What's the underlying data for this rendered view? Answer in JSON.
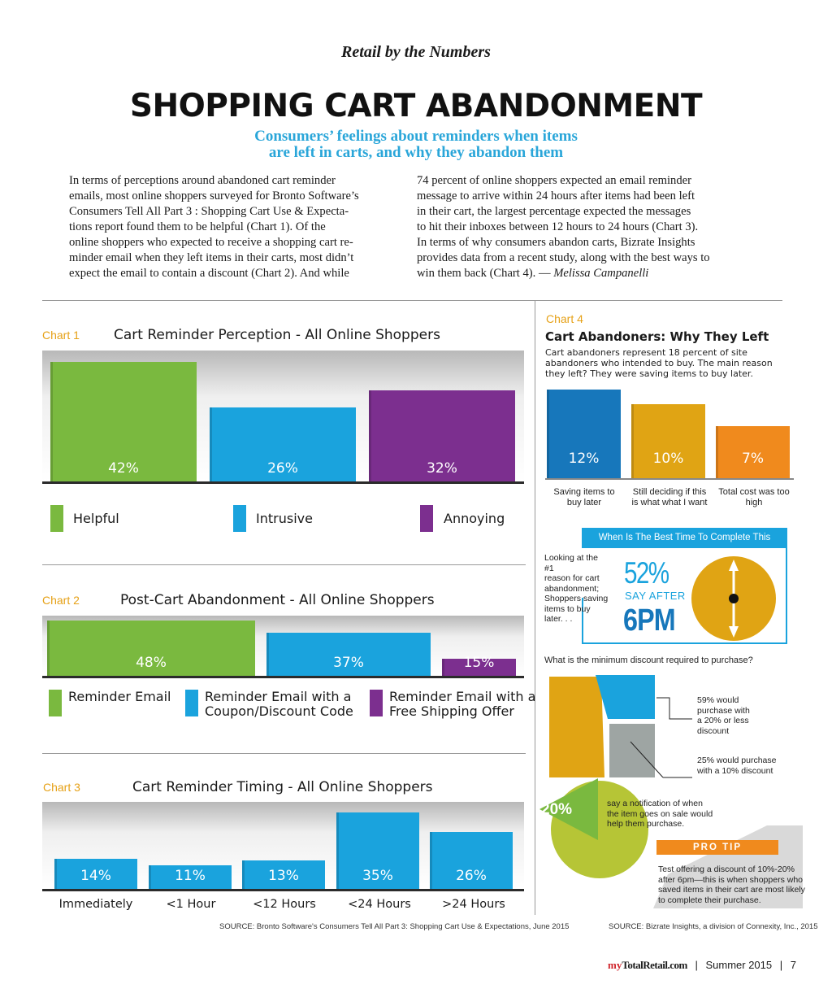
{
  "header": {
    "kicker": "Retail by the Numbers",
    "headline": "SHOPPING CART ABANDONMENT",
    "dek_line1": "Consumers’ feelings about reminders when items",
    "dek_line2": "are left in carts, and why they abandon them"
  },
  "article": {
    "col1": [
      "In terms of perceptions around abandoned cart reminder",
      "emails, most online shoppers surveyed for Bronto Software’s",
      "Consumers Tell All Part 3 : Shopping Cart Use & Expecta-",
      "tions report found them to be helpful (Chart 1). Of the",
      "online shoppers who expected to receive a shopping cart re-",
      "minder email when they left items in their carts, most didn’t",
      "expect the email to contain a discount (Chart 2). And while"
    ],
    "col2": [
      "74 percent of online shoppers expected an email reminder",
      "message to arrive within 24 hours after items had been left",
      "in their cart, the largest percentage expected the messages",
      "to hit their inboxes between 12 hours to 24 hours (Chart 3).",
      "In terms of why consumers abandon carts, Bizrate Insights",
      "provides data from a recent study, along with the best ways to",
      "win them back (Chart 4). — "
    ],
    "byline": "Melissa Campanelli"
  },
  "chart_data": [
    {
      "type": "bar",
      "tag": "Chart 1",
      "title": "Cart Reminder Perception - All Online Shoppers",
      "categories": [
        "Helpful",
        "Intrusive",
        "Annoying"
      ],
      "values": [
        42,
        26,
        32
      ],
      "labels": [
        "42%",
        "26%",
        "32%"
      ],
      "colors": [
        "#7ab93f",
        "#1aa3dd",
        "#7c2f8f"
      ]
    },
    {
      "type": "bar",
      "tag": "Chart 2",
      "title": "Post-Cart Abandonment - All Online Shoppers",
      "categories": [
        "Reminder Email",
        "Reminder Email with a Coupon/Discount Code",
        "Reminder Email with a Free Shipping Offer"
      ],
      "legend": [
        [
          "Reminder Email"
        ],
        [
          "Reminder Email with a",
          "Coupon/Discount Code"
        ],
        [
          "Reminder Email with a",
          "Free Shipping Offer"
        ]
      ],
      "values": [
        48,
        37,
        15
      ],
      "labels": [
        "48%",
        "37%",
        "15%"
      ],
      "colors": [
        "#7ab93f",
        "#1aa3dd",
        "#7c2f8f"
      ]
    },
    {
      "type": "bar",
      "tag": "Chart 3",
      "title": "Cart Reminder Timing - All Online Shoppers",
      "categories": [
        "Immediately",
        "<1 Hour",
        "<12 Hours",
        "<24 Hours",
        ">24 Hours"
      ],
      "values": [
        14,
        11,
        13,
        35,
        26
      ],
      "labels": [
        "14%",
        "11%",
        "13%",
        "35%",
        "26%"
      ],
      "color": "#1aa3dd"
    },
    {
      "type": "bar",
      "tag": "Chart 4",
      "title": "Cart Abandoners: Why They Left",
      "subtitle": [
        "Cart abandoners represent 18 percent of site",
        "abandoners who intended to buy. The main reason",
        "they left? They were saving items to buy later."
      ],
      "categories": [
        "Saving items to buy later",
        "Still deciding if this is what what I want",
        "Total cost was too high"
      ],
      "category_lines": [
        [
          "Saving items to",
          "buy later"
        ],
        [
          "Still deciding if this",
          "is what what I want"
        ],
        [
          "Total cost was too",
          "high"
        ]
      ],
      "values": [
        12,
        10,
        7
      ],
      "labels": [
        "12%",
        "10%",
        "7%"
      ],
      "colors": [
        "#1777bb",
        "#e0a414",
        "#f08a1d"
      ]
    }
  ],
  "sources": {
    "left": "SOURCE: Bronto Software's Consumers Tell All Part 3: Shopping Cart Use & Expectations, June 2015",
    "right": "SOURCE: Bizrate Insights, a division of Connexity, Inc., 2015"
  },
  "infographic": {
    "best_time_banner": "When Is The Best Time To Complete This Purchase?",
    "best_time_note": [
      "Looking at the #1",
      "reason for cart",
      "abandonment;",
      "Shoppers saving",
      "items to buy",
      "later. . ."
    ],
    "best_time_pct": "52%",
    "best_time_say": "SAY AFTER",
    "best_time_value": "6PM",
    "discount_question": "What is the minimum discount required to purchase?",
    "discount_59": [
      "59% would",
      "purchase with",
      "a 20% or less",
      "discount"
    ],
    "discount_25": [
      "25% would purchase",
      "with a 10% discount"
    ],
    "notify_pct": "20%",
    "notify_text": [
      "say a notification of when",
      "the item goes on sale would",
      "help them purchase."
    ],
    "pro_tip_label": "PRO TIP",
    "pro_tip_text": [
      "Test offering a discount of 10%-20%",
      "after 6pm—this is when shoppers who",
      "saved items in their cart are most likely",
      "to complete their purchase."
    ]
  },
  "footer": {
    "brand_my": "my",
    "brand_name": "TotalRetail.com",
    "issue": "Summer 2015",
    "page": "7"
  }
}
